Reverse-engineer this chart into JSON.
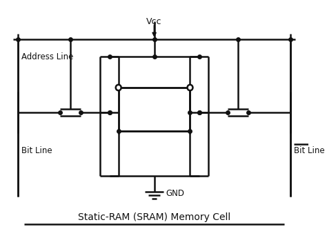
{
  "title": "Static-RAM (SRAM) Memory Cell",
  "bg_color": "#ffffff",
  "line_color": "#111111",
  "lw": 1.8,
  "dot_ms": 4.0,
  "label_address": "Address Line",
  "label_bitL": "Bit Line",
  "label_bitR": "Bit Line",
  "label_vcc": "Vcc",
  "label_gnd": "GND",
  "AL": 57,
  "VC": 28,
  "TR": 82,
  "PG": 127,
  "MID": 163,
  "NG": 190,
  "BR": 255,
  "GN": 278,
  "xLB": 28,
  "xLag": 108,
  "xLin": 168,
  "xCtr": 237,
  "xRin": 306,
  "xRag": 366,
  "xRB": 446,
  "tw": 14
}
